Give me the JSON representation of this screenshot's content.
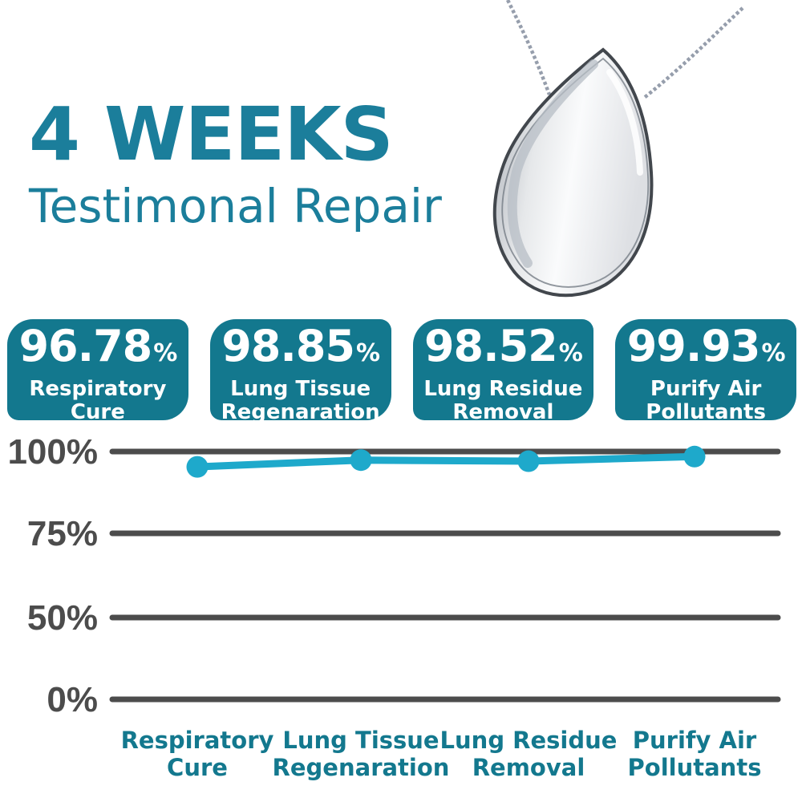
{
  "header": {
    "title": "4 WEEKS",
    "subtitle": "Testimonal Repair"
  },
  "pendant": {
    "description": "silver teardrop pendant on chain"
  },
  "stats": [
    {
      "value": "96.78",
      "unit": "%",
      "label": "Respiratory Cure"
    },
    {
      "value": "98.85",
      "unit": "%",
      "label": "Lung Tissue Regenaration"
    },
    {
      "value": "98.52",
      "unit": "%",
      "label": "Lung Residue Removal"
    },
    {
      "value": "99.93",
      "unit": "%",
      "label": "Purify Air Pollutants"
    }
  ],
  "chart_data": {
    "type": "line",
    "categories": [
      "Respiratory Cure",
      "Lung Tissue Regenaration",
      "Lung Residue Removal",
      "Purify Air Pollutants"
    ],
    "values": [
      96.78,
      98.85,
      98.52,
      99.93
    ],
    "yticks": [
      "100%",
      "75%",
      "50%",
      "0%"
    ],
    "ytick_values": [
      100,
      75,
      50,
      0
    ],
    "ylim": [
      0,
      100
    ],
    "grid": true,
    "legend_position": "none",
    "line_color": "#1ea9cb",
    "grid_color": "#4c4c4c",
    "tick_label_color": "#4c4c4c",
    "category_label_color": "#16798f"
  },
  "colors": {
    "teal_heading": "#1b7e9b",
    "teal_box": "#13788e",
    "cyan_line": "#1ea9cb",
    "gray_axis": "#4c4c4c"
  }
}
